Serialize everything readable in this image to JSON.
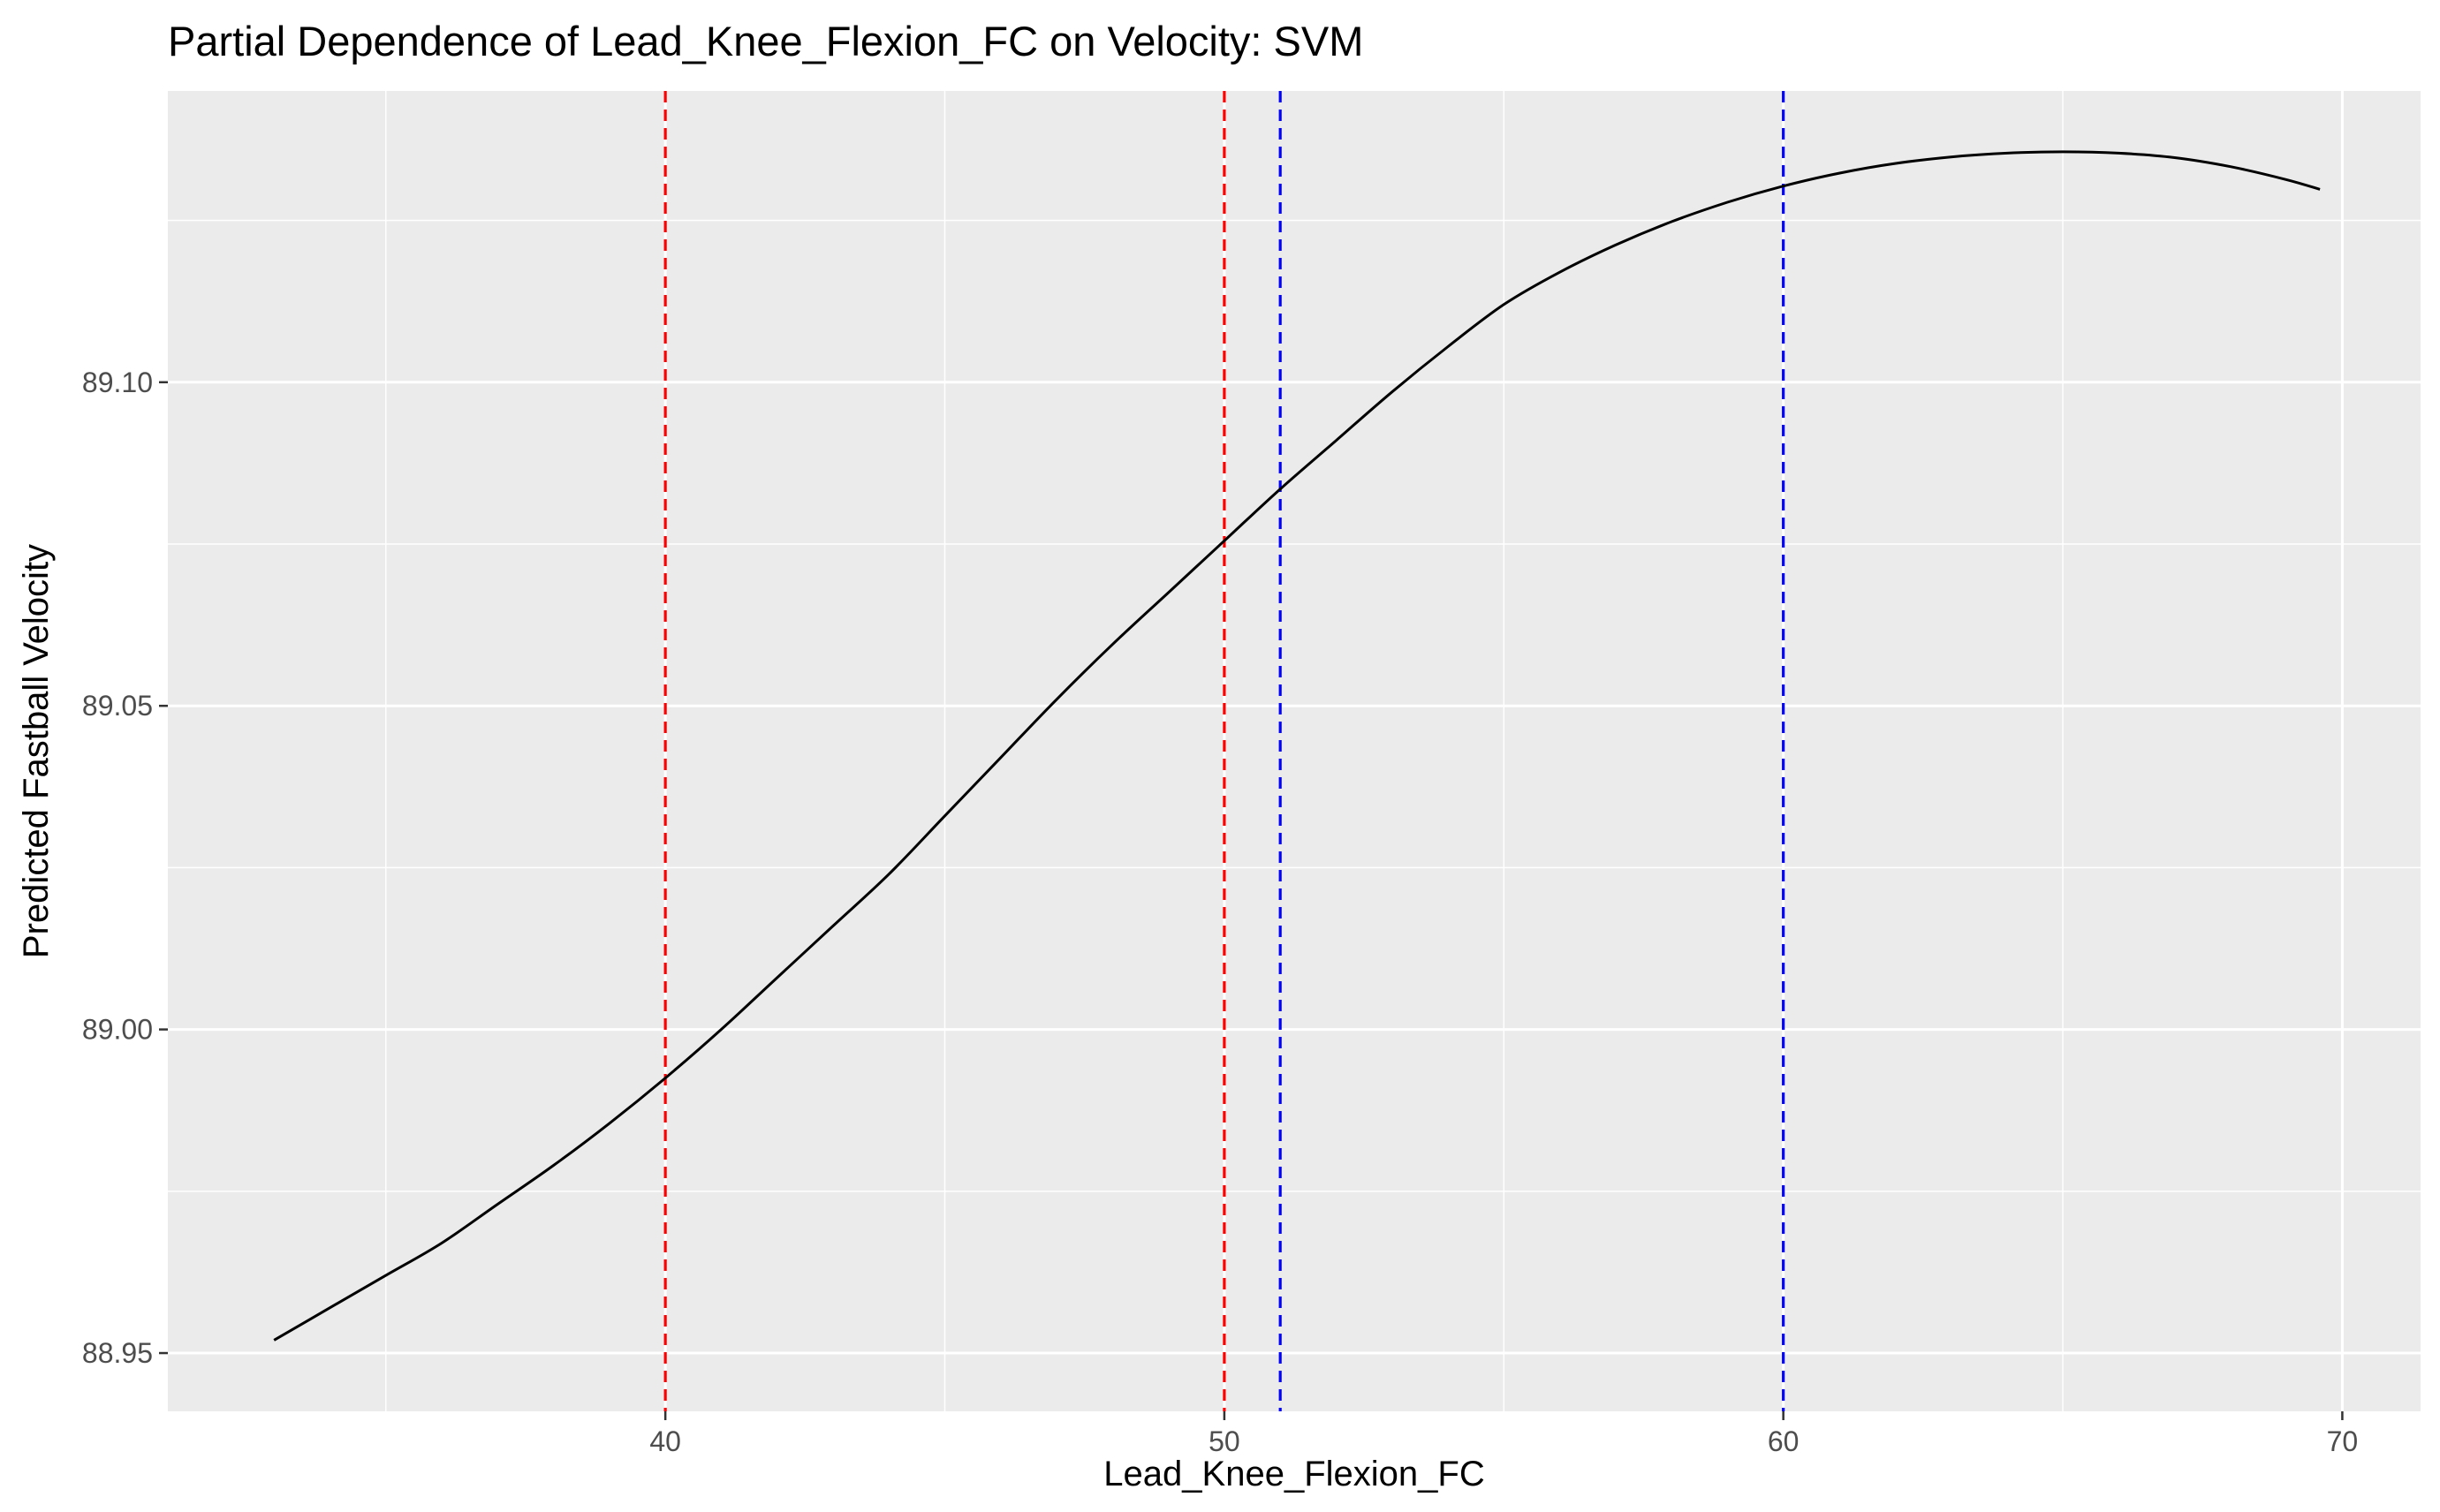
{
  "chart_data": {
    "type": "line",
    "title": "Partial Dependence of Lead_Knee_Flexion_FC on Velocity: SVM",
    "xlabel": "Lead_Knee_Flexion_FC",
    "ylabel": "Predicted Fastball Velocity",
    "xlim": [
      31.1,
      71.4
    ],
    "ylim": [
      88.941,
      89.145
    ],
    "x_ticks": [
      40,
      50,
      60,
      70
    ],
    "x_tick_labels": [
      "40",
      "50",
      "60",
      "70"
    ],
    "y_ticks": [
      88.95,
      89.0,
      89.05,
      89.1
    ],
    "y_tick_labels": [
      "88.95",
      "89.00",
      "89.05",
      "89.10"
    ],
    "x_minor_ticks": [
      35,
      45,
      55,
      65
    ],
    "y_minor_ticks": [
      88.975,
      89.025,
      89.075,
      89.125
    ],
    "grid": true,
    "legend": "none",
    "colors": {
      "panel_background": "#ebebeb",
      "grid": "#ffffff",
      "line": "#000000",
      "red_lines": "#ff0000",
      "blue_lines": "#0000ff"
    },
    "series": [
      {
        "color": "#000000",
        "x": [
          33.0,
          34.0,
          35.0,
          36.0,
          37.0,
          38.0,
          39.0,
          40.0,
          41.0,
          42.0,
          43.0,
          44.0,
          45.0,
          46.0,
          47.0,
          48.0,
          49.0,
          50.0,
          51.0,
          52.0,
          53.0,
          54.0,
          55.0,
          56.0,
          57.0,
          58.0,
          59.0,
          60.0,
          61.0,
          62.0,
          63.0,
          64.0,
          65.0,
          66.0,
          67.0,
          68.0,
          69.0,
          69.6
        ],
        "y": [
          88.952,
          88.957,
          88.962,
          88.967,
          88.973,
          88.979,
          88.9855,
          88.9925,
          89.0,
          89.008,
          89.016,
          89.024,
          89.033,
          89.042,
          89.051,
          89.0595,
          89.0675,
          89.0755,
          89.0835,
          89.091,
          89.0985,
          89.1055,
          89.112,
          89.117,
          89.1212,
          89.1248,
          89.1278,
          89.1303,
          89.1323,
          89.1338,
          89.1348,
          89.1354,
          89.1356,
          89.1354,
          89.1347,
          89.1333,
          89.1313,
          89.1298
        ]
      }
    ],
    "vlines": [
      {
        "x": 40,
        "color": "#ff0000",
        "style": "dashed"
      },
      {
        "x": 50,
        "color": "#ff0000",
        "style": "dashed"
      },
      {
        "x": 51,
        "color": "#0000ff",
        "style": "dashed"
      },
      {
        "x": 60,
        "color": "#0000ff",
        "style": "dashed"
      }
    ]
  }
}
